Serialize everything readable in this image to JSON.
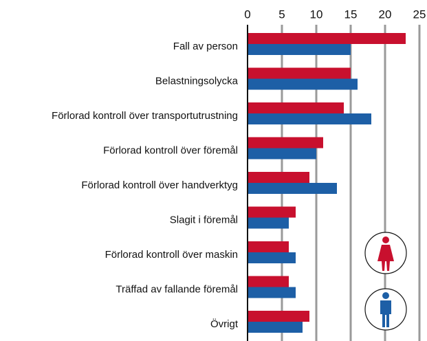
{
  "chart_data": {
    "type": "bar",
    "orientation": "horizontal",
    "categories": [
      "Fall av person",
      "Belastningsolycka",
      "Förlorad kontroll över transportutrustning",
      "Förlorad kontroll över föremål",
      "Förlorad kontroll över handverktyg",
      "Slagit i föremål",
      "Förlorad kontroll över maskin",
      "Träffad av fallande föremål",
      "Övrigt"
    ],
    "series": [
      {
        "color": "#c8102e",
        "values": [
          23,
          15,
          14,
          11,
          9,
          7,
          6,
          6,
          9
        ]
      },
      {
        "color": "#1d5fa6",
        "values": [
          15,
          16,
          18,
          10,
          13,
          6,
          7,
          7,
          8
        ]
      }
    ],
    "xlim": [
      0,
      25
    ],
    "xticks": [
      0,
      5,
      10,
      15,
      20,
      25
    ],
    "grid": true
  }
}
